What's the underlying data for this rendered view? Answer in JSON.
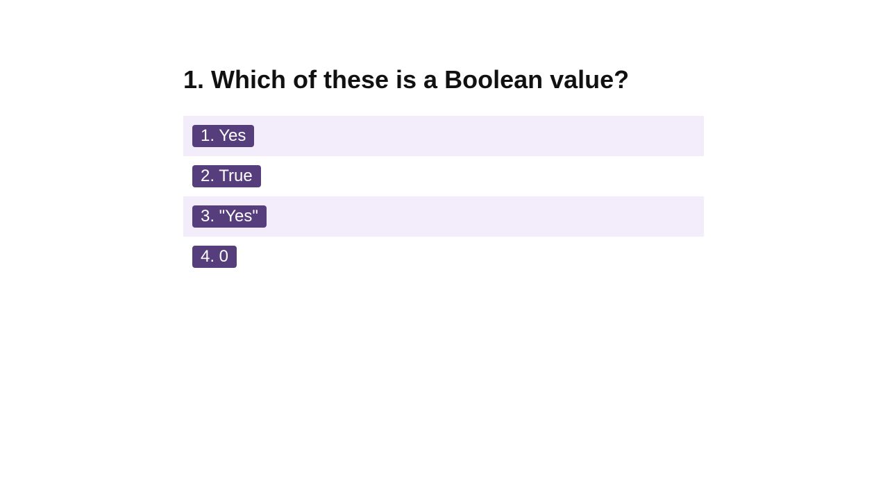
{
  "question": {
    "title": "1. Which of these is a Boolean value?"
  },
  "answers": [
    {
      "label": "1. Yes"
    },
    {
      "label": "2. True"
    },
    {
      "label": "3. \"Yes\""
    },
    {
      "label": "4. 0"
    }
  ],
  "colors": {
    "chip_background": "#563d7c",
    "row_shade": "#f3ecfa"
  }
}
